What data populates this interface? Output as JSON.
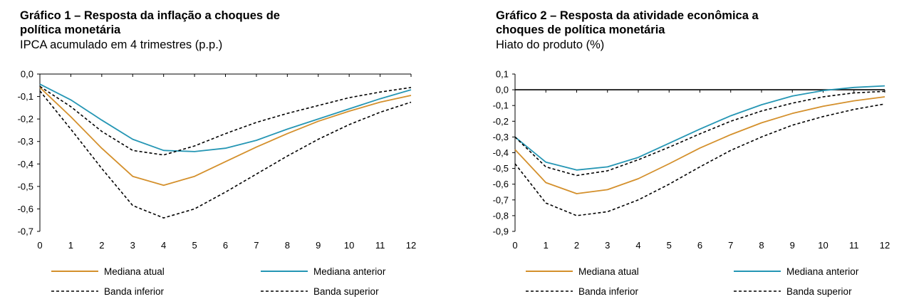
{
  "chart_data": [
    {
      "type": "line",
      "title": "Gráfico 1 – Resposta da inflação a choques de política monetária",
      "title_lines": [
        "Gráfico 1 – Resposta da inflação a choques de",
        "política monetária"
      ],
      "subtitle": "IPCA acumulado em 4 trimestres (p.p.)",
      "xlabel": "",
      "ylabel": "",
      "x": [
        0,
        1,
        2,
        3,
        4,
        5,
        6,
        7,
        8,
        9,
        10,
        11,
        12
      ],
      "x_ticks": [
        "0",
        "1",
        "2",
        "3",
        "4",
        "5",
        "6",
        "7",
        "8",
        "9",
        "10",
        "11",
        "12"
      ],
      "ylim": [
        -0.7,
        0.0
      ],
      "y_ticks": [
        0.0,
        -0.1,
        -0.2,
        -0.3,
        -0.4,
        -0.5,
        -0.6,
        -0.7
      ],
      "y_tick_labels": [
        "0,0",
        "-0,1",
        "-0,2",
        "-0,3",
        "-0,4",
        "-0,5",
        "-0,6",
        "-0,7"
      ],
      "grid": false,
      "legend_position": "bottom",
      "series": [
        {
          "name": "Mediana atual",
          "color": "#d4902c",
          "style": "solid",
          "values": [
            -0.06,
            -0.19,
            -0.33,
            -0.455,
            -0.495,
            -0.455,
            -0.39,
            -0.325,
            -0.265,
            -0.21,
            -0.165,
            -0.125,
            -0.095
          ]
        },
        {
          "name": "Mediana anterior",
          "color": "#2596b4",
          "style": "solid",
          "values": [
            -0.045,
            -0.115,
            -0.205,
            -0.29,
            -0.34,
            -0.345,
            -0.33,
            -0.295,
            -0.245,
            -0.2,
            -0.155,
            -0.11,
            -0.07
          ]
        },
        {
          "name": "Banda inferior",
          "color": "#000000",
          "style": "dashed",
          "values": [
            -0.075,
            -0.245,
            -0.42,
            -0.585,
            -0.64,
            -0.6,
            -0.525,
            -0.445,
            -0.365,
            -0.29,
            -0.225,
            -0.17,
            -0.125
          ]
        },
        {
          "name": "Banda superior",
          "color": "#000000",
          "style": "dashed",
          "values": [
            -0.055,
            -0.145,
            -0.255,
            -0.34,
            -0.36,
            -0.32,
            -0.265,
            -0.215,
            -0.175,
            -0.14,
            -0.105,
            -0.08,
            -0.06
          ]
        }
      ]
    },
    {
      "type": "line",
      "title": "Gráfico 2 – Resposta da atividade econômica a choques de política monetária",
      "title_lines": [
        "Gráfico 2 – Resposta da atividade econômica a",
        "choques de política monetária"
      ],
      "subtitle": "Hiato do produto (%)",
      "xlabel": "",
      "ylabel": "",
      "x": [
        0,
        1,
        2,
        3,
        4,
        5,
        6,
        7,
        8,
        9,
        10,
        11,
        12
      ],
      "x_ticks": [
        "0",
        "1",
        "2",
        "3",
        "4",
        "5",
        "6",
        "7",
        "8",
        "9",
        "10",
        "11",
        "12"
      ],
      "ylim": [
        -0.9,
        0.1
      ],
      "y_ticks": [
        0.1,
        0.0,
        -0.1,
        -0.2,
        -0.3,
        -0.4,
        -0.5,
        -0.6,
        -0.7,
        -0.8,
        -0.9
      ],
      "y_tick_labels": [
        "0,1",
        "0,0",
        "-0,1",
        "-0,2",
        "-0,3",
        "-0,4",
        "-0,5",
        "-0,6",
        "-0,7",
        "-0,8",
        "-0,9"
      ],
      "grid": false,
      "legend_position": "bottom",
      "series": [
        {
          "name": "Mediana atual",
          "color": "#d4902c",
          "style": "solid",
          "values": [
            -0.38,
            -0.59,
            -0.66,
            -0.635,
            -0.565,
            -0.47,
            -0.37,
            -0.285,
            -0.21,
            -0.15,
            -0.105,
            -0.07,
            -0.045
          ]
        },
        {
          "name": "Mediana anterior",
          "color": "#2596b4",
          "style": "solid",
          "values": [
            -0.3,
            -0.46,
            -0.51,
            -0.49,
            -0.43,
            -0.34,
            -0.25,
            -0.165,
            -0.095,
            -0.04,
            -0.005,
            0.015,
            0.025
          ]
        },
        {
          "name": "Banda inferior",
          "color": "#000000",
          "style": "dashed",
          "values": [
            -0.47,
            -0.72,
            -0.8,
            -0.775,
            -0.7,
            -0.6,
            -0.49,
            -0.385,
            -0.3,
            -0.225,
            -0.17,
            -0.125,
            -0.09
          ]
        },
        {
          "name": "Banda superior",
          "color": "#000000",
          "style": "dashed",
          "values": [
            -0.3,
            -0.49,
            -0.545,
            -0.515,
            -0.445,
            -0.365,
            -0.28,
            -0.2,
            -0.135,
            -0.085,
            -0.045,
            -0.02,
            -0.01
          ]
        }
      ]
    }
  ]
}
